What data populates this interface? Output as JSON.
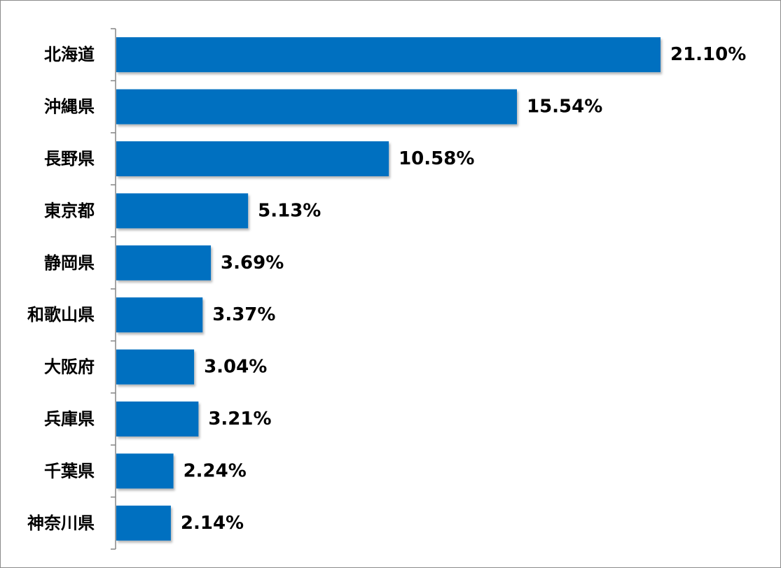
{
  "chart_data": {
    "type": "bar",
    "orientation": "horizontal",
    "title": "",
    "xlabel": "",
    "ylabel": "",
    "categories": [
      "北海道",
      "沖縄県",
      "長野県",
      "東京都",
      "静岡県",
      "和歌山県",
      "大阪府",
      "兵庫県",
      "千葉県",
      "神奈川県"
    ],
    "values": [
      21.1,
      15.54,
      10.58,
      5.13,
      3.69,
      3.37,
      3.04,
      3.21,
      2.24,
      2.14
    ],
    "data_labels": [
      "21.10%",
      "15.54%",
      "10.58%",
      "5.13%",
      "3.69%",
      "3.37%",
      "3.04%",
      "3.21%",
      "2.24%",
      "2.14%"
    ],
    "value_unit": "%",
    "xlim": [
      0,
      21.1
    ],
    "grid": false,
    "legend": "none",
    "bar_color": "#0070c0",
    "axis_color": "#868686"
  }
}
